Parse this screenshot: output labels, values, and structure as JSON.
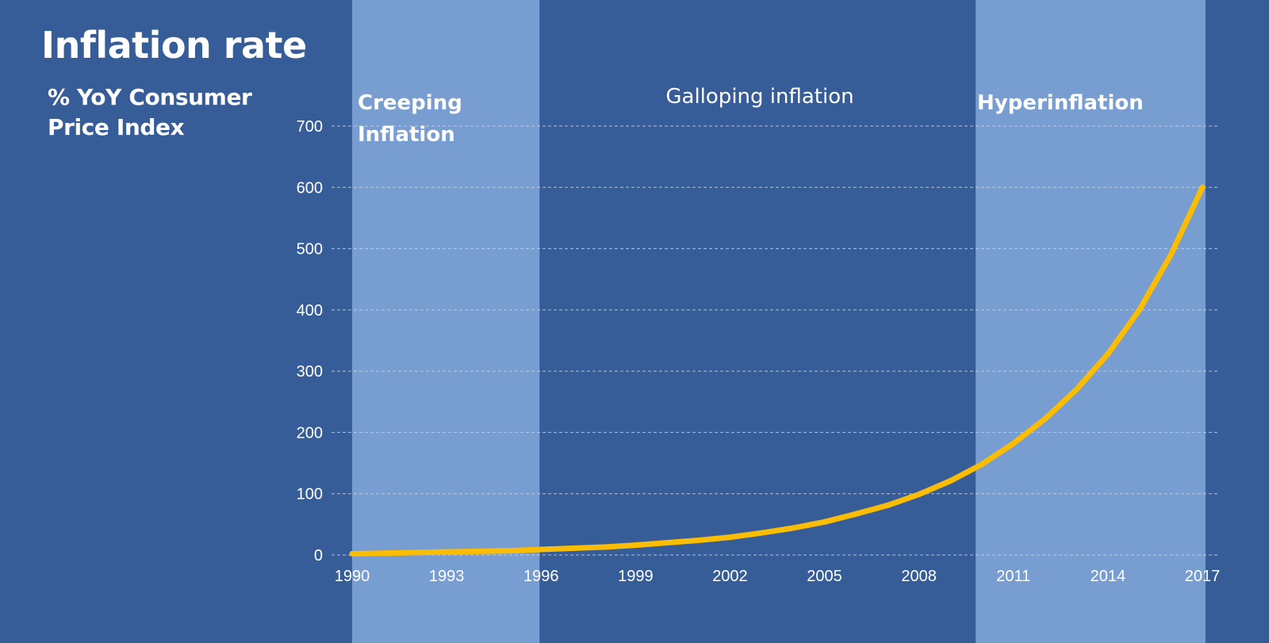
{
  "title": "Inflation rate",
  "subtitle": "% YoY Consumer Price Index",
  "colors": {
    "background": "#375d98",
    "band": "#789dd0",
    "line": "#fbbc04",
    "grid": "#c7d3e6"
  },
  "chart_data": {
    "type": "line",
    "title": "Inflation rate",
    "ylabel": "% YoY Consumer Price Index",
    "xlabel": "",
    "xlim": [
      1990,
      2017
    ],
    "ylim": [
      0,
      700
    ],
    "grid": true,
    "yticks": [
      "700",
      "600",
      "500",
      "400",
      "300",
      "200",
      "100",
      "0"
    ],
    "xticks": [
      "1990",
      "1993",
      "1996",
      "1999",
      "2002",
      "2005",
      "2008",
      "2011",
      "2014",
      "2017"
    ],
    "bands": [
      {
        "label_lines": [
          "Creeping",
          "Inflation"
        ],
        "from": 1990,
        "to": 1995.95,
        "shaded": true,
        "bold": true
      },
      {
        "label_lines": [
          "Galloping inflation"
        ],
        "from": 1995.95,
        "to": 2009.8,
        "shaded": false,
        "bold": false
      },
      {
        "label_lines": [
          "Hyperinflation"
        ],
        "from": 2009.8,
        "to": 2017.1,
        "shaded": true,
        "bold": true
      }
    ],
    "series": [
      {
        "name": "Inflation rate",
        "x": [
          1990,
          1991,
          1992,
          1993,
          1994,
          1995,
          1996,
          1997,
          1998,
          1999,
          2000,
          2001,
          2002,
          2003,
          2004,
          2005,
          2006,
          2007,
          2008,
          2009,
          2010,
          2011,
          2012,
          2013,
          2014,
          2015,
          2016,
          2017
        ],
        "values": [
          2,
          3,
          4,
          5,
          6,
          7,
          9,
          11,
          13,
          16,
          20,
          24,
          29,
          36,
          44,
          54,
          67,
          81,
          99,
          121,
          148,
          182,
          222,
          270,
          328,
          400,
          490,
          600
        ]
      }
    ]
  }
}
